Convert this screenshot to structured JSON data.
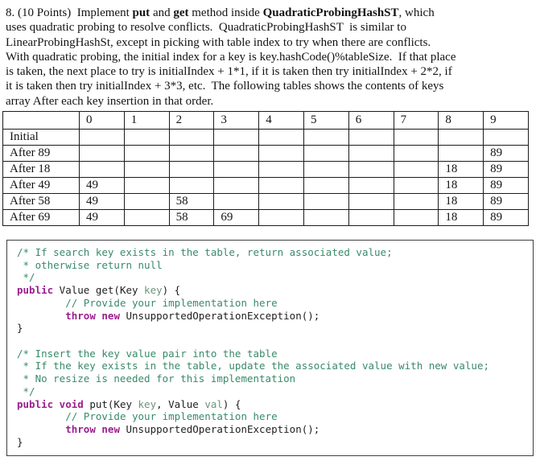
{
  "intro": {
    "lines": [
      {
        "segments": [
          {
            "text": "8. (10 Points)  Implement ",
            "bold": false
          },
          {
            "text": "put",
            "bold": true
          },
          {
            "text": " and ",
            "bold": false
          },
          {
            "text": "get",
            "bold": true
          },
          {
            "text": " method inside ",
            "bold": false
          },
          {
            "text": "QuadraticProbingHashST",
            "bold": true
          },
          {
            "text": ", which",
            "bold": false
          }
        ]
      },
      {
        "segments": [
          {
            "text": "uses quadratic probing to resolve conflicts.  QuadraticProbingHashST  is similar to",
            "bold": false
          }
        ]
      },
      {
        "segments": [
          {
            "text": "LinearProbingHashSt, except in picking with table index to try when there are conflicts.",
            "bold": false
          }
        ]
      },
      {
        "segments": [
          {
            "text": "With quadratic probing, the initial index for a key is key.hashCode()%tableSize.  If that place",
            "bold": false
          }
        ]
      },
      {
        "segments": [
          {
            "text": "is taken, the next place to try is initialIndex + 1*1, if it is taken then try initialIndex + 2*2, if",
            "bold": false
          }
        ]
      },
      {
        "segments": [
          {
            "text": "it is taken then try initialIndex + 3*3, etc.  The following tables shows the contents of keys",
            "bold": false
          }
        ]
      },
      {
        "segments": [
          {
            "text": "array After each key insertion in that order.",
            "bold": false
          }
        ]
      }
    ]
  },
  "hash_table": {
    "columns": [
      "",
      "0",
      "1",
      "2",
      "3",
      "4",
      "5",
      "6",
      "7",
      "8",
      "9"
    ],
    "rows": [
      {
        "label": "Initial",
        "cells": [
          "",
          "",
          "",
          "",
          "",
          "",
          "",
          "",
          "",
          ""
        ]
      },
      {
        "label": "After 89",
        "cells": [
          "",
          "",
          "",
          "",
          "",
          "",
          "",
          "",
          "",
          "89"
        ]
      },
      {
        "label": "After 18",
        "cells": [
          "",
          "",
          "",
          "",
          "",
          "",
          "",
          "",
          "18",
          "89"
        ]
      },
      {
        "label": "After 49",
        "cells": [
          "49",
          "",
          "",
          "",
          "",
          "",
          "",
          "",
          "18",
          "89"
        ]
      },
      {
        "label": "After 58",
        "cells": [
          "49",
          "",
          "58",
          "",
          "",
          "",
          "",
          "",
          "18",
          "89"
        ]
      },
      {
        "label": "After 69",
        "cells": [
          "49",
          "",
          "58",
          "69",
          "",
          "",
          "",
          "",
          "18",
          "89"
        ]
      }
    ]
  },
  "code_panel": {
    "colors": {
      "keyword": "#9c1e8f",
      "comment": "#398a6a",
      "parameter": "#6e937b",
      "plain": "#1e1e1e"
    },
    "lines": [
      {
        "segments": [
          {
            "text": "/* If search key exists in the table, return associated value;",
            "style": "comment"
          }
        ]
      },
      {
        "segments": [
          {
            "text": " * otherwise return null",
            "style": "comment"
          }
        ]
      },
      {
        "segments": [
          {
            "text": " */",
            "style": "comment"
          }
        ]
      },
      {
        "segments": [
          {
            "text": "public",
            "style": "keyword"
          },
          {
            "text": " Value get(Key ",
            "style": "plain"
          },
          {
            "text": "key",
            "style": "parameter"
          },
          {
            "text": ") {",
            "style": "plain"
          }
        ]
      },
      {
        "segments": [
          {
            "text": "        ",
            "style": "plain"
          },
          {
            "text": "// Provide your implementation here",
            "style": "comment"
          }
        ]
      },
      {
        "segments": [
          {
            "text": "        ",
            "style": "plain"
          },
          {
            "text": "throw",
            "style": "keyword"
          },
          {
            "text": " ",
            "style": "plain"
          },
          {
            "text": "new",
            "style": "keyword"
          },
          {
            "text": " UnsupportedOperationException();",
            "style": "plain"
          }
        ]
      },
      {
        "segments": [
          {
            "text": "}",
            "style": "plain"
          }
        ]
      },
      {
        "segments": [
          {
            "text": "",
            "style": "plain"
          }
        ]
      },
      {
        "segments": [
          {
            "text": "/* Insert the key value pair into the table",
            "style": "comment"
          }
        ]
      },
      {
        "segments": [
          {
            "text": " * If the key exists in the table, update the associated value with new value;",
            "style": "comment"
          }
        ]
      },
      {
        "segments": [
          {
            "text": " * No resize is needed for this implementation",
            "style": "comment"
          }
        ]
      },
      {
        "segments": [
          {
            "text": " */",
            "style": "comment"
          }
        ]
      },
      {
        "segments": [
          {
            "text": "public void",
            "style": "keyword"
          },
          {
            "text": " put(Key ",
            "style": "plain"
          },
          {
            "text": "key",
            "style": "parameter"
          },
          {
            "text": ", Value ",
            "style": "plain"
          },
          {
            "text": "val",
            "style": "parameter"
          },
          {
            "text": ") {",
            "style": "plain"
          }
        ]
      },
      {
        "segments": [
          {
            "text": "        ",
            "style": "plain"
          },
          {
            "text": "// Provide your implementation here",
            "style": "comment"
          }
        ]
      },
      {
        "segments": [
          {
            "text": "        ",
            "style": "plain"
          },
          {
            "text": "throw",
            "style": "keyword"
          },
          {
            "text": " ",
            "style": "plain"
          },
          {
            "text": "new",
            "style": "keyword"
          },
          {
            "text": " UnsupportedOperationException();",
            "style": "plain"
          }
        ]
      },
      {
        "segments": [
          {
            "text": "}",
            "style": "plain"
          }
        ]
      }
    ]
  }
}
